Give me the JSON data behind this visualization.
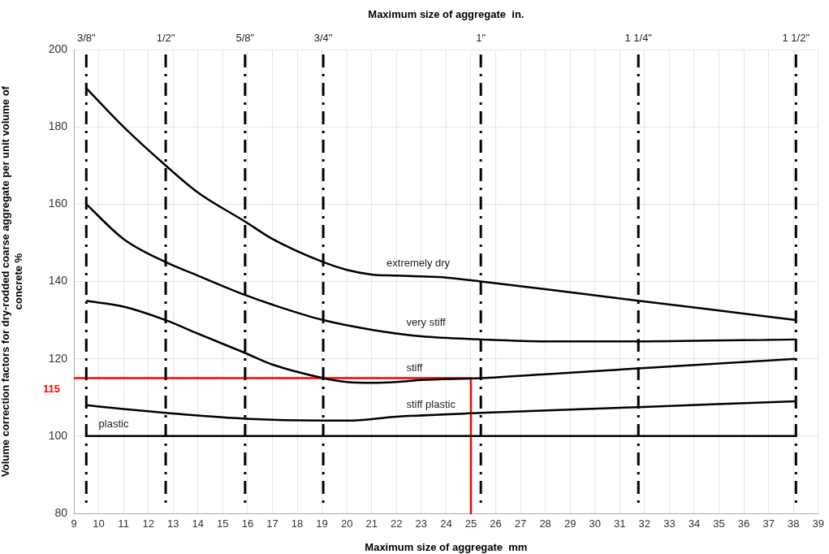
{
  "chart_data": {
    "type": "line",
    "xlabel": "Maximum size of aggregate  mm",
    "x2label": "Maximum size of aggregate  in.",
    "ylabel": "Volume correction factors for dry-rodded coarse aggregate per unit volume of concrete %",
    "xlim": [
      9,
      39
    ],
    "xticks": [
      9,
      10,
      11,
      12,
      13,
      14,
      15,
      16,
      17,
      18,
      19,
      20,
      21,
      22,
      23,
      24,
      25,
      26,
      27,
      28,
      29,
      30,
      31,
      32,
      33,
      34,
      35,
      36,
      37,
      38,
      39
    ],
    "ref_lines": [
      {
        "axis": "x",
        "value": 9.5,
        "color": "#000000",
        "line_style": "dashed"
      },
      {
        "axis": "x",
        "value": 12.7,
        "color": "#000000",
        "line_style": "dashed"
      },
      {
        "axis": "x",
        "value": 15.9,
        "color": "#000000",
        "line_style": "dashed"
      },
      {
        "axis": "x",
        "value": 19.05,
        "color": "#000000",
        "line_style": "dashed"
      },
      {
        "axis": "x",
        "value": 25.4,
        "color": "#000000",
        "line_style": "dashed"
      },
      {
        "axis": "x",
        "value": 31.75,
        "color": "#000000",
        "line_style": "dashed"
      },
      {
        "axis": "x",
        "value": 38.1,
        "color": "#000000",
        "line_style": "dashed"
      }
    ],
    "ylim": [
      80,
      200
    ],
    "yticks": [
      80,
      100,
      120,
      140,
      160,
      180,
      200
    ],
    "grid": true,
    "legend": false,
    "marker": "none",
    "series": [
      {
        "name": "extremely dry",
        "color": "#000000",
        "x": [
          9.5,
          11,
          12.7,
          14,
          15.9,
          17,
          19.05,
          20,
          21,
          22,
          23,
          24,
          25.4,
          28,
          31.75,
          35,
          38.1
        ],
        "values": [
          190,
          180,
          170,
          163,
          155.5,
          151,
          145,
          143,
          141.8,
          141.5,
          141.3,
          141,
          140,
          138,
          135,
          132.5,
          130
        ]
      },
      {
        "name": "very stiff",
        "color": "#000000",
        "x": [
          9.5,
          11,
          12.7,
          14,
          15.9,
          17,
          19.05,
          21,
          23,
          25.4,
          28,
          31.75,
          38.1
        ],
        "values": [
          160,
          151,
          145,
          141.5,
          136.5,
          134,
          130,
          127.5,
          125.8,
          125,
          124.5,
          124.5,
          125
        ]
      },
      {
        "name": "stiff",
        "color": "#000000",
        "x": [
          9.5,
          11,
          12.7,
          14,
          15.9,
          17,
          19.05,
          20,
          21,
          22,
          23,
          25.4,
          28,
          31.75,
          38.1
        ],
        "values": [
          135,
          133.5,
          130,
          126.5,
          121.5,
          118.5,
          115,
          114,
          113.8,
          114,
          114.5,
          115,
          116,
          117.5,
          120
        ]
      },
      {
        "name": "stiff plastic",
        "color": "#000000",
        "x": [
          9.5,
          11,
          12.7,
          15.9,
          19.05,
          20,
          22,
          25.4,
          31.75,
          38.1
        ],
        "values": [
          108,
          107,
          106,
          104.5,
          104,
          104,
          105,
          106,
          107.5,
          109
        ]
      },
      {
        "name": "plastic",
        "color": "#000000",
        "x": [
          9.5,
          38.1
        ],
        "values": [
          100,
          100
        ]
      },
      {
        "color": "#ff0000",
        "x": [
          9,
          25,
          25
        ],
        "values": [
          115,
          115,
          80
        ]
      }
    ],
    "annotations": [
      {
        "text": "115",
        "x": 9,
        "y": 115
      },
      "3/8\"",
      "1/2\"",
      "5/8\"",
      "3/4\"",
      "1\"",
      "1 1/4\"",
      "1 1/2\""
    ]
  }
}
